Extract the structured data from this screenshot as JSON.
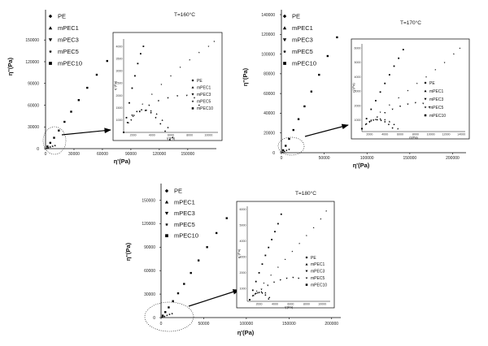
{
  "figure": {
    "legend_labels": [
      "PE",
      "mPEC1",
      "mPEC3",
      "mPEC5",
      "mPEC10"
    ],
    "marker_shapes": [
      "diamond",
      "triangle-up",
      "triangle-down",
      "star",
      "square"
    ],
    "color": "#000000"
  },
  "chart_data": [
    {
      "type": "scatter",
      "title": "T=160°C",
      "xlabel": "η'(Pa)",
      "ylabel": "η''(Pa)",
      "xlim": [
        0,
        175000
      ],
      "ylim": [
        0,
        185000
      ],
      "xticks": [
        "0",
        "30000",
        "60000",
        "90000",
        "120000",
        "150000"
      ],
      "yticks": [
        "0",
        "30000",
        "60000",
        "90000",
        "120000",
        "150000"
      ],
      "legend": [
        "PE",
        "mPEC1",
        "mPEC3",
        "mPEC5",
        "mPEC10"
      ],
      "series": [
        {
          "name": "mPEC10",
          "x": [
            2000,
            5000,
            9000,
            14000,
            20000,
            27000,
            35000,
            44000,
            54000,
            65000,
            77000,
            90000
          ],
          "y": [
            3000,
            8000,
            15000,
            25000,
            37000,
            51000,
            67000,
            84000,
            102000,
            121000,
            141000,
            152000
          ]
        },
        {
          "name": "mPEC5",
          "x": [
            1500,
            3000,
            5000,
            7500,
            10000
          ],
          "y": [
            500,
            1200,
            2200,
            3200,
            4200
          ]
        }
      ],
      "inset": {
        "xlabel": "η'(Pa)",
        "ylabel": "η''(Pa)",
        "xticks": [
          "2000",
          "4000",
          "6000",
          "8000",
          "10000"
        ],
        "yticks": [
          "1000",
          "1500",
          "2000",
          "2500",
          "3000",
          "3500",
          "4000"
        ],
        "legend": [
          "PE",
          "mPEC1",
          "mPEC3",
          "mPEC5",
          "mPEC10"
        ],
        "series": [
          {
            "name": "PE",
            "x": [
              1000,
              1400,
              1900,
              2400,
              2900,
              3400,
              3900,
              4400,
              4900,
              5400,
              5900
            ],
            "y": [
              500,
              900,
              1200,
              1350,
              1420,
              1400,
              1300,
              1100,
              850,
              550,
              200
            ]
          },
          {
            "name": "mPEC1",
            "x": [
              1000,
              1500,
              2100,
              2700,
              3300,
              3900,
              4500,
              5100,
              5700,
              6200
            ],
            "y": [
              500,
              900,
              1200,
              1350,
              1400,
              1380,
              1250,
              1000,
              700,
              300
            ]
          },
          {
            "name": "mPEC3",
            "x": [
              1000,
              1800,
              2700,
              3700,
              4700,
              5700,
              6700,
              7700,
              8500,
              9000
            ],
            "y": [
              500,
              1000,
              1350,
              1600,
              1780,
              1900,
              1980,
              2000,
              1900,
              1600
            ]
          },
          {
            "name": "mPEC5",
            "x": [
              1000,
              2000,
              3000,
              4000,
              5000,
              6000,
              7000,
              8000,
              9000,
              10000,
              10600
            ],
            "y": [
              500,
              1150,
              1650,
              2050,
              2450,
              2800,
              3150,
              3450,
              3750,
              4000,
              4200
            ]
          },
          {
            "name": "mPEC10",
            "x": [
              1000,
              1300,
              1600,
              1900,
              2200,
              2500,
              2800,
              3100
            ],
            "y": [
              500,
              1100,
              1700,
              2300,
              2800,
              3300,
              3700,
              4000
            ]
          }
        ]
      }
    },
    {
      "type": "scatter",
      "title": "T=170°C",
      "xlabel": "η'(Pa)",
      "ylabel": "η''(Pa)",
      "xlim": [
        0,
        210000
      ],
      "ylim": [
        0,
        140000
      ],
      "xticks": [
        "0",
        "50000",
        "100000",
        "150000",
        "200000"
      ],
      "yticks": [
        "0",
        "20000",
        "40000",
        "60000",
        "80000",
        "100000",
        "120000",
        "140000"
      ],
      "legend": [
        "PE",
        "mPEC1",
        "mPEC3",
        "mPEC5",
        "mPEC10"
      ],
      "series": [
        {
          "name": "mPEC10",
          "x": [
            2000,
            5000,
            9000,
            14000,
            20000,
            27000,
            35000,
            44000,
            54000,
            65000
          ],
          "y": [
            2500,
            7000,
            14000,
            23000,
            34000,
            47000,
            62000,
            79000,
            98000,
            117000
          ]
        },
        {
          "name": "mPEC5",
          "x": [
            1500,
            3500,
            6000,
            9000
          ],
          "y": [
            500,
            1300,
            2300,
            3300
          ]
        }
      ],
      "inset": {
        "xlabel": "η'(Pa)",
        "ylabel": "η''(Pa)",
        "xticks": [
          "2000",
          "4000",
          "6000",
          "8000",
          "10000",
          "12000",
          "14000"
        ],
        "yticks": [
          "1000",
          "2000",
          "3000",
          "4000",
          "5000",
          "6000"
        ],
        "legend": [
          "PE",
          "mPEC1",
          "mPEC3",
          "mPEC5",
          "mPEC10"
        ],
        "series": [
          {
            "name": "PE",
            "x": [
              1000,
              1500,
              2000,
              2500,
              3000,
              3500,
              4000,
              4500,
              5000
            ],
            "y": [
              400,
              700,
              900,
              1000,
              1020,
              980,
              880,
              700,
              450
            ]
          },
          {
            "name": "mPEC1",
            "x": [
              1000,
              1600,
              2200,
              2800,
              3400,
              4000,
              4600,
              5200,
              5700
            ],
            "y": [
              400,
              750,
              950,
              1050,
              1080,
              1030,
              900,
              700,
              400
            ]
          },
          {
            "name": "mPEC3",
            "x": [
              1000,
              2000,
              3000,
              4000,
              5000,
              6000,
              7000,
              8000,
              9000,
              9800
            ],
            "y": [
              400,
              850,
              1200,
              1500,
              1750,
              1950,
              2100,
              2200,
              2150,
              1900
            ]
          },
          {
            "name": "mPEC5",
            "x": [
              1000,
              2200,
              3400,
              4600,
              5800,
              7000,
              8200,
              9400,
              10600,
              11800,
              13000,
              13800
            ],
            "y": [
              400,
              1000,
              1550,
              2050,
              2550,
              3050,
              3550,
              4000,
              4500,
              5000,
              5600,
              6000
            ]
          },
          {
            "name": "mPEC10",
            "x": [
              1000,
              1600,
              2200,
              2800,
              3400,
              4000,
              4600,
              5200,
              5800,
              6400
            ],
            "y": [
              400,
              1100,
              1750,
              2350,
              2950,
              3550,
              4150,
              4750,
              5300,
              5900
            ]
          }
        ]
      }
    },
    {
      "type": "scatter",
      "title": "T=180°C",
      "xlabel": "η'(Pa)",
      "ylabel": "η''(Pa)",
      "xlim": [
        0,
        205000
      ],
      "ylim": [
        0,
        165000
      ],
      "xticks": [
        "0",
        "50000",
        "100000",
        "150000",
        "200000"
      ],
      "yticks": [
        "0",
        "30000",
        "60000",
        "90000",
        "120000",
        "150000"
      ],
      "legend": [
        "PE",
        "mPEC1",
        "mPEC3",
        "mPEC5",
        "mPEC10"
      ],
      "series": [
        {
          "name": "mPEC10",
          "x": [
            2000,
            5000,
            9000,
            14000,
            20000,
            27000,
            35000,
            44000,
            54000,
            65000,
            77000
          ],
          "y": [
            2500,
            7000,
            13000,
            21000,
            31000,
            43000,
            57000,
            73000,
            90000,
            108000,
            127000
          ]
        },
        {
          "name": "mPEC5",
          "x": [
            1500,
            4000,
            7000,
            10000,
            13000
          ],
          "y": [
            500,
            1500,
            2800,
            4000,
            5000
          ]
        }
      ],
      "inset": {
        "xlabel": "η'(Pa)",
        "ylabel": "η''(Pa)",
        "xticks": [
          "2000",
          "4000",
          "6000",
          "8000",
          "10000"
        ],
        "yticks": [
          "1000",
          "2000",
          "3000",
          "4000",
          "5000",
          "6000"
        ],
        "legend": [
          "PE",
          "mPEC1",
          "mPEC3",
          "mPEC5",
          "mPEC10"
        ],
        "series": [
          {
            "name": "PE",
            "x": [
              800,
              1200,
              1600,
              2000,
              2400,
              2800,
              3200
            ],
            "y": [
              300,
              550,
              700,
              760,
              720,
              600,
              350
            ]
          },
          {
            "name": "mPEC1",
            "x": [
              800,
              1300,
              1800,
              2300,
              2800,
              3300
            ],
            "y": [
              300,
              580,
              740,
              800,
              740,
              450
            ]
          },
          {
            "name": "mPEC3",
            "x": [
              800,
              1500,
              2300,
              3100,
              3900,
              4700,
              5500,
              6300,
              7000
            ],
            "y": [
              300,
              650,
              950,
              1200,
              1400,
              1550,
              1650,
              1700,
              1650
            ]
          },
          {
            "name": "mPEC5",
            "x": [
              800,
              1700,
              2600,
              3500,
              4400,
              5300,
              6200,
              7100,
              8000,
              8900,
              9800,
              10500
            ],
            "y": [
              300,
              850,
              1350,
              1850,
              2350,
              2850,
              3350,
              3850,
              4350,
              4850,
              5400,
              5900
            ]
          },
          {
            "name": "mPEC10",
            "x": [
              800,
              1200,
              1600,
              2000,
              2400,
              2800,
              3200,
              3600,
              4000,
              4400,
              4800
            ],
            "y": [
              300,
              900,
              1450,
              2000,
              2550,
              3100,
              3600,
              4100,
              4600,
              5100,
              5700
            ]
          }
        ]
      }
    }
  ]
}
